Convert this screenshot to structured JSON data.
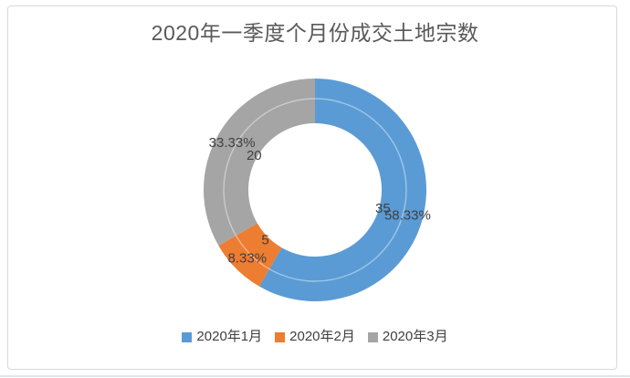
{
  "page": {
    "background": "#ffffff",
    "frame_border_color": "#d9d9d9",
    "bottom_divider_color": "#dee4ec"
  },
  "chart_data": {
    "type": "pie",
    "subtype": "doughnut",
    "title": "2020年一季度个月份成交土地宗数",
    "title_color": "#595959",
    "label_color": "#404040",
    "categories": [
      "2020年1月",
      "2020年2月",
      "2020年3月"
    ],
    "values": [
      35,
      5,
      20
    ],
    "total": 60,
    "start_angle_deg": 0,
    "direction": "clockwise",
    "legend_position": "bottom",
    "slices": [
      {
        "label": "2020年1月",
        "value": 35,
        "value_label": "35",
        "percent_label": "58.33%",
        "color": "#5b9bd5"
      },
      {
        "label": "2020年2月",
        "value": 5,
        "value_label": "5",
        "percent_label": "8.33%",
        "color": "#ed7d31"
      },
      {
        "label": "2020年3月",
        "value": 20,
        "value_label": "20",
        "percent_label": "33.33%",
        "color": "#a5a5a5"
      }
    ]
  }
}
